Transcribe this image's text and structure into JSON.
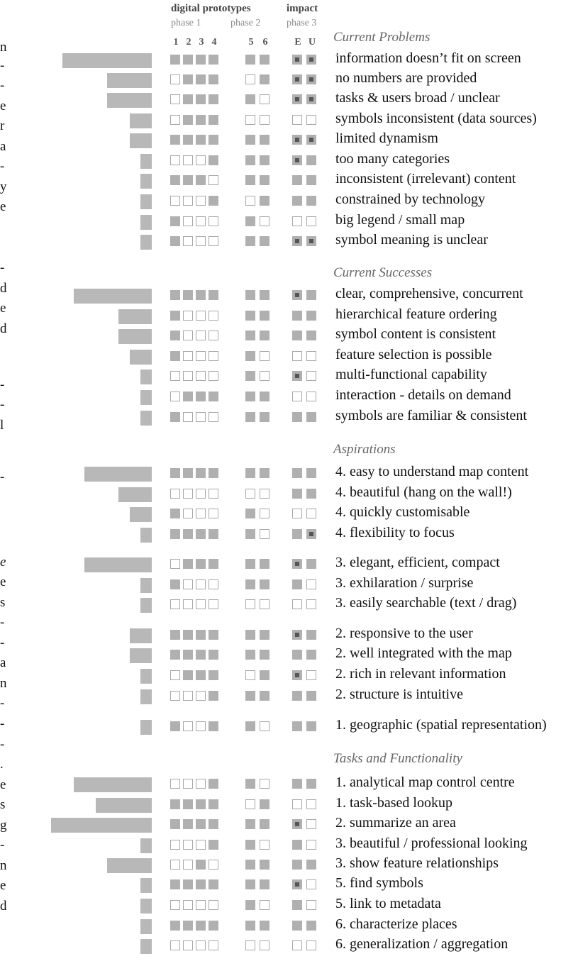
{
  "edge_text": [
    "n",
    "-",
    "-",
    "e",
    "r",
    "a",
    "-",
    "y",
    "e",
    "-",
    "d",
    "e",
    "d",
    "-",
    "-",
    "l",
    "-",
    "e",
    "e",
    "s",
    "-",
    "-",
    "a",
    "n",
    "-",
    "-",
    "-",
    ".",
    "e",
    "s",
    "g",
    "-",
    "n",
    "e",
    "d"
  ],
  "header": {
    "group1": "digital prototypes",
    "group2": "impact",
    "phase1": "phase 1",
    "phase2": "phase 2",
    "phase3": "phase 3",
    "cols": [
      "1",
      "2",
      "3",
      "4",
      "5",
      "6",
      "E",
      "U"
    ]
  },
  "chart_data": {
    "type": "table",
    "title": "digital prototypes / impact",
    "columns": [
      "1",
      "2",
      "3",
      "4",
      "5",
      "6",
      "E",
      "U"
    ],
    "frequency_scale_max": 6,
    "legend": "gray square = present, outlined square = absent, dark centre = impact",
    "sections": [
      {
        "title": "Current Problems",
        "rows": [
          {
            "label": "information doesn’t fit on screen",
            "frequency": 5.6,
            "prototypes": [
              1,
              1,
              1,
              1,
              1,
              1
            ],
            "impact": [
              2,
              2
            ]
          },
          {
            "label": "no numbers are provided",
            "frequency": 2.8,
            "prototypes": [
              0,
              1,
              1,
              1,
              0,
              1
            ],
            "impact": [
              2,
              2
            ]
          },
          {
            "label": "tasks & users broad / unclear",
            "frequency": 2.8,
            "prototypes": [
              0,
              1,
              1,
              1,
              1,
              0
            ],
            "impact": [
              2,
              2
            ]
          },
          {
            "label": "symbols inconsistent (data sources)",
            "frequency": 1.4,
            "prototypes": [
              0,
              1,
              1,
              1,
              0,
              0
            ],
            "impact": [
              0,
              0
            ]
          },
          {
            "label": "limited dynamism",
            "frequency": 1.4,
            "prototypes": [
              1,
              1,
              1,
              1,
              1,
              1
            ],
            "impact": [
              2,
              2
            ]
          },
          {
            "label": "too many categories",
            "frequency": 0.7,
            "prototypes": [
              0,
              0,
              0,
              1,
              1,
              1
            ],
            "impact": [
              2,
              1
            ]
          },
          {
            "label": "inconsistent (irrelevant) content",
            "frequency": 0.7,
            "prototypes": [
              1,
              1,
              1,
              0,
              1,
              1
            ],
            "impact": [
              1,
              1
            ]
          },
          {
            "label": "constrained by technology",
            "frequency": 0.7,
            "prototypes": [
              0,
              0,
              0,
              1,
              0,
              1
            ],
            "impact": [
              1,
              1
            ]
          },
          {
            "label": "big legend / small map",
            "frequency": 0.7,
            "prototypes": [
              1,
              0,
              0,
              0,
              1,
              0
            ],
            "impact": [
              0,
              0
            ]
          },
          {
            "label": "symbol meaning is unclear",
            "frequency": 0.7,
            "prototypes": [
              1,
              0,
              0,
              0,
              1,
              1
            ],
            "impact": [
              2,
              2
            ]
          }
        ]
      },
      {
        "title": "Current Successes",
        "rows": [
          {
            "label": "clear, comprehensive, concurrent",
            "frequency": 4.9,
            "prototypes": [
              1,
              1,
              1,
              1,
              1,
              1
            ],
            "impact": [
              2,
              1
            ]
          },
          {
            "label": "hierarchical feature ordering",
            "frequency": 2.1,
            "prototypes": [
              1,
              0,
              0,
              0,
              1,
              1
            ],
            "impact": [
              1,
              1
            ]
          },
          {
            "label": "symbol content is consistent",
            "frequency": 2.1,
            "prototypes": [
              1,
              0,
              0,
              0,
              1,
              1
            ],
            "impact": [
              1,
              1
            ]
          },
          {
            "label": "feature selection is possible",
            "frequency": 1.4,
            "prototypes": [
              1,
              0,
              0,
              0,
              1,
              0
            ],
            "impact": [
              0,
              0
            ]
          },
          {
            "label": "multi-functional capability",
            "frequency": 0.7,
            "prototypes": [
              0,
              0,
              0,
              0,
              1,
              0
            ],
            "impact": [
              2,
              0
            ]
          },
          {
            "label": "interaction - details on demand",
            "frequency": 0.7,
            "prototypes": [
              0,
              1,
              1,
              1,
              1,
              1
            ],
            "impact": [
              0,
              0
            ]
          },
          {
            "label": "symbols are familiar & consistent",
            "frequency": 0.7,
            "prototypes": [
              1,
              0,
              0,
              0,
              1,
              1
            ],
            "impact": [
              1,
              1
            ]
          }
        ]
      },
      {
        "title": "Aspirations",
        "rows": [
          {
            "label": "4. easy to understand map content",
            "frequency": 4.2,
            "prototypes": [
              1,
              1,
              1,
              1,
              1,
              1
            ],
            "impact": [
              1,
              1
            ]
          },
          {
            "label": "4. beautiful (hang on the wall!)",
            "frequency": 2.1,
            "prototypes": [
              0,
              0,
              0,
              0,
              0,
              0
            ],
            "impact": [
              1,
              1
            ]
          },
          {
            "label": "4. quickly customisable",
            "frequency": 1.4,
            "prototypes": [
              1,
              0,
              0,
              0,
              1,
              0
            ],
            "impact": [
              0,
              0
            ]
          },
          {
            "label": "4. flexibility to focus",
            "frequency": 0.7,
            "prototypes": [
              1,
              1,
              1,
              1,
              1,
              0
            ],
            "impact": [
              1,
              2
            ]
          },
          {
            "label": "3. elegant, efficient, compact",
            "frequency": 4.2,
            "prototypes": [
              0,
              1,
              1,
              1,
              1,
              1
            ],
            "impact": [
              2,
              1
            ]
          },
          {
            "label": "3. exhilaration / surprise",
            "frequency": 0.7,
            "prototypes": [
              1,
              0,
              0,
              0,
              1,
              1
            ],
            "impact": [
              1,
              0
            ]
          },
          {
            "label": "3. easily searchable (text / drag)",
            "frequency": 0.7,
            "prototypes": [
              0,
              0,
              0,
              0,
              0,
              0
            ],
            "impact": [
              0,
              0
            ]
          },
          {
            "label": "2. responsive to the user",
            "frequency": 1.4,
            "prototypes": [
              1,
              1,
              1,
              1,
              1,
              1
            ],
            "impact": [
              2,
              1
            ]
          },
          {
            "label": "2. well integrated with the map",
            "frequency": 1.4,
            "prototypes": [
              1,
              1,
              1,
              1,
              1,
              1
            ],
            "impact": [
              1,
              1
            ]
          },
          {
            "label": "2. rich in relevant information",
            "frequency": 0.7,
            "prototypes": [
              0,
              1,
              1,
              1,
              0,
              1
            ],
            "impact": [
              2,
              0
            ]
          },
          {
            "label": "2. structure is intuitive",
            "frequency": 0.7,
            "prototypes": [
              0,
              0,
              0,
              1,
              1,
              1
            ],
            "impact": [
              1,
              1
            ]
          },
          {
            "label": "1. geographic (spatial representation)",
            "frequency": 0.7,
            "prototypes": [
              1,
              0,
              0,
              1,
              1,
              0
            ],
            "impact": [
              1,
              1
            ]
          }
        ]
      },
      {
        "title": "Tasks and Functionality",
        "rows": [
          {
            "label": "1. analytical map control centre",
            "frequency": 4.9,
            "prototypes": [
              0,
              0,
              0,
              1,
              1,
              0
            ],
            "impact": [
              1,
              1
            ]
          },
          {
            "label": "1. task-based lookup",
            "frequency": 3.5,
            "prototypes": [
              1,
              1,
              1,
              1,
              0,
              1
            ],
            "impact": [
              0,
              0
            ]
          },
          {
            "label": "2. summarize an area",
            "frequency": 6.3,
            "prototypes": [
              1,
              1,
              1,
              1,
              1,
              1
            ],
            "impact": [
              2,
              0
            ]
          },
          {
            "label": "3. beautiful / professional looking",
            "frequency": 0.7,
            "prototypes": [
              0,
              0,
              0,
              1,
              1,
              0
            ],
            "impact": [
              1,
              0
            ]
          },
          {
            "label": "3. show feature relationships",
            "frequency": 2.8,
            "prototypes": [
              0,
              0,
              1,
              0,
              1,
              1
            ],
            "impact": [
              1,
              1
            ]
          },
          {
            "label": "5. find symbols",
            "frequency": 0.7,
            "prototypes": [
              1,
              1,
              1,
              1,
              1,
              1
            ],
            "impact": [
              2,
              0
            ]
          },
          {
            "label": "5. link to metadata",
            "frequency": 0.7,
            "prototypes": [
              0,
              0,
              0,
              0,
              1,
              0
            ],
            "impact": [
              1,
              0
            ]
          },
          {
            "label": "6. characterize places",
            "frequency": 0.7,
            "prototypes": [
              1,
              1,
              1,
              1,
              1,
              1
            ],
            "impact": [
              1,
              1
            ]
          },
          {
            "label": "6. generalization / aggregation",
            "frequency": 0.7,
            "prototypes": [
              0,
              0,
              0,
              0,
              0,
              0
            ],
            "impact": [
              0,
              0
            ]
          }
        ]
      }
    ]
  }
}
